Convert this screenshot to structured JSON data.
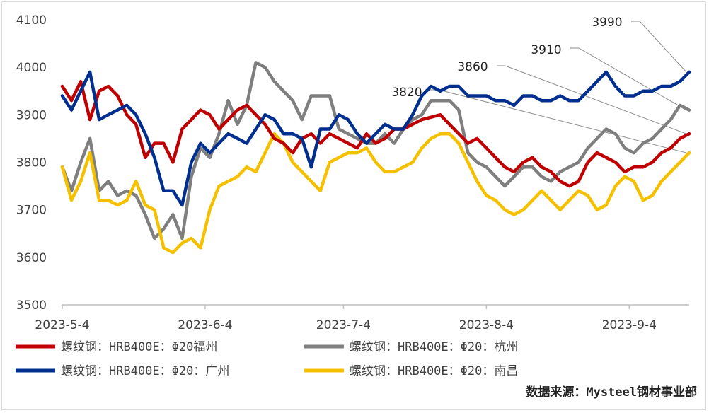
{
  "chart_data": {
    "type": "line",
    "title": "",
    "xlabel": "",
    "ylabel": "",
    "ylim": [
      3500,
      4100
    ],
    "yticks": [
      3500,
      3600,
      3700,
      3800,
      3900,
      4000,
      4100
    ],
    "x_ticks": [
      {
        "label": "2023-5-4",
        "date": "2023-05-04"
      },
      {
        "label": "2023-6-4",
        "date": "2023-06-04"
      },
      {
        "label": "2023-7-4",
        "date": "2023-07-04"
      },
      {
        "label": "2023-8-4",
        "date": "2023-08-04"
      },
      {
        "label": "2023-9-4",
        "date": "2023-09-04"
      }
    ],
    "x": [
      "2023-05-04",
      "2023-05-06",
      "2023-05-08",
      "2023-05-10",
      "2023-05-12",
      "2023-05-14",
      "2023-05-16",
      "2023-05-18",
      "2023-05-20",
      "2023-05-22",
      "2023-05-24",
      "2023-05-26",
      "2023-05-28",
      "2023-05-30",
      "2023-06-01",
      "2023-06-03",
      "2023-06-05",
      "2023-06-07",
      "2023-06-09",
      "2023-06-11",
      "2023-06-13",
      "2023-06-15",
      "2023-06-17",
      "2023-06-19",
      "2023-06-21",
      "2023-06-23",
      "2023-06-25",
      "2023-06-27",
      "2023-06-29",
      "2023-07-01",
      "2023-07-03",
      "2023-07-05",
      "2023-07-07",
      "2023-07-09",
      "2023-07-11",
      "2023-07-13",
      "2023-07-15",
      "2023-07-17",
      "2023-07-19",
      "2023-07-21",
      "2023-07-23",
      "2023-07-25",
      "2023-07-27",
      "2023-07-29",
      "2023-07-31",
      "2023-08-02",
      "2023-08-04",
      "2023-08-06",
      "2023-08-08",
      "2023-08-10",
      "2023-08-12",
      "2023-08-14",
      "2023-08-16",
      "2023-08-18",
      "2023-08-20",
      "2023-08-22",
      "2023-08-24",
      "2023-08-26",
      "2023-08-28",
      "2023-08-30",
      "2023-09-01",
      "2023-09-03",
      "2023-09-05",
      "2023-09-07",
      "2023-09-09",
      "2023-09-11",
      "2023-09-13",
      "2023-09-15",
      "2023-09-17"
    ],
    "series": [
      {
        "name": "螺纹钢：HRB400E：Φ20福州",
        "color": "#c00000",
        "values": [
          3960,
          3930,
          3970,
          3890,
          3950,
          3960,
          3940,
          3900,
          3880,
          3810,
          3840,
          3840,
          3800,
          3870,
          3890,
          3910,
          3900,
          3870,
          3890,
          3910,
          3920,
          3900,
          3880,
          3850,
          3840,
          3820,
          3850,
          3860,
          3840,
          3860,
          3850,
          3840,
          3830,
          3860,
          3840,
          3850,
          3870,
          3870,
          3880,
          3890,
          3895,
          3900,
          3880,
          3860,
          3840,
          3850,
          3830,
          3810,
          3790,
          3780,
          3800,
          3810,
          3790,
          3780,
          3760,
          3750,
          3760,
          3800,
          3820,
          3810,
          3800,
          3780,
          3790,
          3790,
          3800,
          3820,
          3830,
          3850,
          3860
        ]
      },
      {
        "name": "螺纹钢：HRB400E：Φ20：杭州",
        "color": "#7f7f7f",
        "values": [
          3790,
          3740,
          3800,
          3850,
          3740,
          3760,
          3730,
          3740,
          3730,
          3690,
          3640,
          3660,
          3690,
          3640,
          3770,
          3830,
          3810,
          3860,
          3930,
          3880,
          3920,
          4010,
          4000,
          3970,
          3950,
          3930,
          3890,
          3940,
          3940,
          3940,
          3870,
          3860,
          3850,
          3840,
          3840,
          3860,
          3840,
          3870,
          3890,
          3900,
          3930,
          3930,
          3930,
          3910,
          3820,
          3800,
          3790,
          3770,
          3750,
          3770,
          3790,
          3790,
          3770,
          3760,
          3780,
          3790,
          3800,
          3830,
          3850,
          3870,
          3860,
          3830,
          3820,
          3840,
          3850,
          3870,
          3890,
          3920,
          3910
        ]
      },
      {
        "name": "螺纹钢：HRB400E：Φ20：广州",
        "color": "#002f8f",
        "values": [
          3940,
          3910,
          3950,
          3990,
          3890,
          3900,
          3910,
          3920,
          3900,
          3860,
          3810,
          3740,
          3740,
          3710,
          3800,
          3840,
          3820,
          3840,
          3860,
          3850,
          3840,
          3870,
          3900,
          3890,
          3860,
          3860,
          3850,
          3790,
          3870,
          3870,
          3900,
          3890,
          3860,
          3840,
          3860,
          3880,
          3870,
          3870,
          3900,
          3940,
          3960,
          3950,
          3960,
          3960,
          3940,
          3940,
          3940,
          3930,
          3930,
          3920,
          3940,
          3940,
          3930,
          3930,
          3940,
          3930,
          3930,
          3950,
          3970,
          3990,
          3960,
          3940,
          3940,
          3950,
          3950,
          3960,
          3960,
          3970,
          3990
        ]
      },
      {
        "name": "螺纹钢：HRB400E：Φ20：南昌",
        "color": "#f5c000",
        "values": [
          3790,
          3720,
          3760,
          3820,
          3720,
          3720,
          3710,
          3720,
          3760,
          3710,
          3700,
          3620,
          3610,
          3630,
          3640,
          3620,
          3700,
          3750,
          3760,
          3770,
          3790,
          3780,
          3820,
          3860,
          3840,
          3800,
          3780,
          3760,
          3740,
          3800,
          3810,
          3820,
          3820,
          3830,
          3800,
          3780,
          3780,
          3790,
          3800,
          3830,
          3850,
          3860,
          3860,
          3840,
          3800,
          3760,
          3730,
          3720,
          3700,
          3690,
          3700,
          3720,
          3740,
          3720,
          3700,
          3720,
          3740,
          3730,
          3700,
          3710,
          3750,
          3770,
          3760,
          3720,
          3730,
          3760,
          3780,
          3800,
          3820
        ]
      }
    ],
    "annotations": [
      {
        "text": "3990",
        "value": 3990,
        "series": "螺纹钢：HRB400E：Φ20：广州"
      },
      {
        "text": "3910",
        "value": 3910,
        "series": "螺纹钢：HRB400E：Φ20：杭州"
      },
      {
        "text": "3860",
        "value": 3860,
        "series": "螺纹钢：HRB400E：Φ20福州"
      },
      {
        "text": "3820",
        "value": 3820,
        "series": "螺纹钢：HRB400E：Φ20：南昌"
      }
    ],
    "legend_placement": "bottom",
    "grid": false
  },
  "source_note": "数据来源：Mysteel钢材事业部"
}
